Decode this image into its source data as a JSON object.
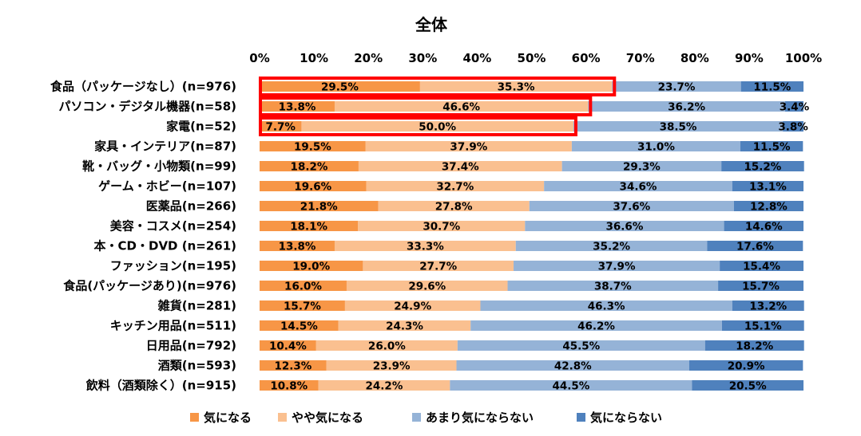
{
  "chart_data": {
    "type": "bar",
    "orientation": "horizontal",
    "stacked": true,
    "percent_stacked": true,
    "title": "全体",
    "xlim": [
      0,
      100
    ],
    "xticks": [
      "0%",
      "10%",
      "20%",
      "30%",
      "40%",
      "50%",
      "60%",
      "70%",
      "80%",
      "90%",
      "100%"
    ],
    "legend_position": "bottom",
    "categories": [
      "食品（パッケージなし）(n=976)",
      "パソコン・デジタル機器(n=58)",
      "家電(n=52)",
      "家具・インテリア(n=87)",
      "靴・バッグ・小物類(n=99)",
      "ゲーム・ホビー(n=107)",
      "医薬品(n=266)",
      "美容・コスメ(n=254)",
      "本・CD・DVD (n=261)",
      "ファッション(n=195)",
      "食品(パッケージあり)(n=976)",
      "雑貨(n=281)",
      "キッチン用品(n=511)",
      "日用品(n=792)",
      "酒類(n=593)",
      "飲料（酒類除く）(n=915)"
    ],
    "series": [
      {
        "name": "気になる",
        "color": "#f79646",
        "values": [
          29.5,
          13.8,
          7.7,
          19.5,
          18.2,
          19.6,
          21.8,
          18.1,
          13.8,
          19.0,
          16.0,
          15.7,
          14.5,
          10.4,
          12.3,
          10.8
        ]
      },
      {
        "name": "やや気になる",
        "color": "#fac090",
        "values": [
          35.3,
          46.6,
          50.0,
          37.9,
          37.4,
          32.7,
          27.8,
          30.7,
          33.3,
          27.7,
          29.6,
          24.9,
          24.3,
          26.0,
          23.9,
          24.2
        ]
      },
      {
        "name": "あまり気にならない",
        "color": "#95b3d7",
        "values": [
          23.7,
          36.2,
          38.5,
          31.0,
          29.3,
          34.6,
          37.6,
          36.6,
          35.2,
          37.9,
          38.7,
          46.3,
          46.2,
          45.5,
          42.8,
          44.5
        ]
      },
      {
        "name": "気にならない",
        "color": "#4f81bd",
        "values": [
          11.5,
          3.4,
          3.8,
          11.5,
          15.2,
          13.1,
          12.8,
          14.6,
          17.6,
          15.4,
          15.7,
          13.2,
          15.1,
          18.2,
          20.9,
          20.5
        ]
      }
    ],
    "data_label_suffix": "%",
    "highlight": {
      "rows": [
        0,
        1,
        2
      ],
      "color": "#ff0000",
      "note": "red outline around first two series"
    }
  }
}
